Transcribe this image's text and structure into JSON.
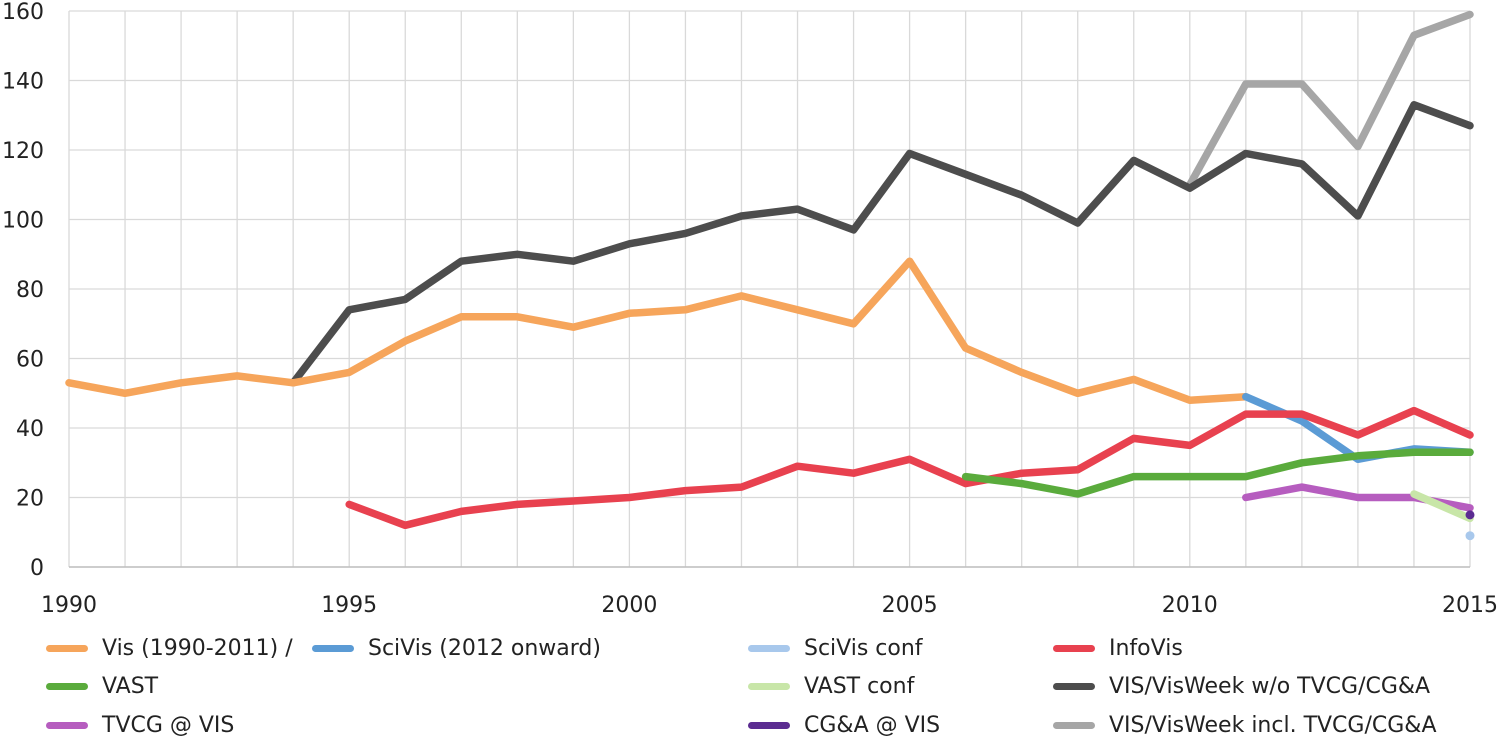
{
  "chart_data": {
    "type": "line",
    "title": "",
    "xlabel": "",
    "ylabel": "",
    "xlim": [
      1990,
      2015
    ],
    "ylim": [
      0,
      160
    ],
    "x_ticks": [
      "1990",
      "1995",
      "2000",
      "2005",
      "2010",
      "2015"
    ],
    "y_ticks": [
      "0",
      "20",
      "40",
      "60",
      "80",
      "100",
      "120",
      "140",
      "160"
    ],
    "grid": true,
    "legend_position": "bottom",
    "series": [
      {
        "name": "VIS/VisWeek incl. TVCG/CG&A",
        "color": "#a6a6a6",
        "legend_col": 3,
        "legend_row": 2,
        "x": [
          2010,
          2011,
          2012,
          2013,
          2014,
          2015
        ],
        "y": [
          110,
          139,
          139,
          121,
          153,
          159
        ]
      },
      {
        "name": "VIS/VisWeek w/o TVCG/CG&A",
        "color": "#4d4d4d",
        "legend_col": 3,
        "legend_row": 1,
        "x": [
          1994,
          1995,
          1996,
          1997,
          1998,
          1999,
          2000,
          2001,
          2002,
          2003,
          2004,
          2005,
          2006,
          2007,
          2008,
          2009,
          2010,
          2011,
          2012,
          2013,
          2014,
          2015
        ],
        "y": [
          53,
          74,
          77,
          88,
          90,
          88,
          93,
          96,
          101,
          103,
          97,
          119,
          113,
          107,
          99,
          117,
          109,
          119,
          116,
          101,
          133,
          127
        ]
      },
      {
        "name": "Vis (1990-2011) /",
        "color": "#f6a55b",
        "legend_col": 0,
        "legend_row": 0,
        "x": [
          1990,
          1991,
          1992,
          1993,
          1994,
          1995,
          1996,
          1997,
          1998,
          1999,
          2000,
          2001,
          2002,
          2003,
          2004,
          2005,
          2006,
          2007,
          2008,
          2009,
          2010,
          2011
        ],
        "y": [
          53,
          50,
          53,
          55,
          53,
          56,
          65,
          72,
          72,
          69,
          73,
          74,
          78,
          74,
          70,
          88,
          63,
          56,
          50,
          54,
          48,
          49
        ]
      },
      {
        "name": "SciVis (2012 onward)",
        "color": "#5b9bd5",
        "legend_col": 0.98,
        "legend_row": 0,
        "x": [
          2011,
          2012,
          2013,
          2014,
          2015
        ],
        "y": [
          49,
          42,
          31,
          34,
          33
        ]
      },
      {
        "name": "InfoVis",
        "color": "#e8414f",
        "legend_col": 3,
        "legend_row": 0,
        "x": [
          1995,
          1996,
          1997,
          1998,
          1999,
          2000,
          2001,
          2002,
          2003,
          2004,
          2005,
          2006,
          2007,
          2008,
          2009,
          2010,
          2011,
          2012,
          2013,
          2014,
          2015
        ],
        "y": [
          18,
          12,
          16,
          18,
          19,
          20,
          22,
          23,
          29,
          27,
          31,
          24,
          27,
          28,
          37,
          35,
          44,
          44,
          38,
          45,
          38
        ]
      },
      {
        "name": "VAST",
        "color": "#5aab3c",
        "legend_col": 0,
        "legend_row": 1,
        "x": [
          2006,
          2007,
          2008,
          2009,
          2010,
          2011,
          2012,
          2013,
          2014,
          2015
        ],
        "y": [
          26,
          24,
          21,
          26,
          26,
          26,
          30,
          32,
          33,
          33
        ]
      },
      {
        "name": "TVCG @ VIS",
        "color": "#b65dbf",
        "legend_col": 0,
        "legend_row": 2,
        "x": [
          2011,
          2012,
          2013,
          2014,
          2015
        ],
        "y": [
          20,
          23,
          20,
          20,
          17
        ]
      },
      {
        "name": "VAST conf",
        "color": "#c8e6a8",
        "legend_col": 2,
        "legend_row": 1,
        "x": [
          2014,
          2015
        ],
        "y": [
          21,
          14
        ]
      },
      {
        "name": "SciVis conf",
        "color": "#a8c8ec",
        "legend_col": 2,
        "legend_row": 0,
        "x": [
          2015
        ],
        "y": [
          9
        ]
      },
      {
        "name": "CG&A @ VIS",
        "color": "#5b2c91",
        "legend_col": 2,
        "legend_row": 2,
        "x": [
          2015
        ],
        "y": [
          15
        ]
      }
    ]
  }
}
